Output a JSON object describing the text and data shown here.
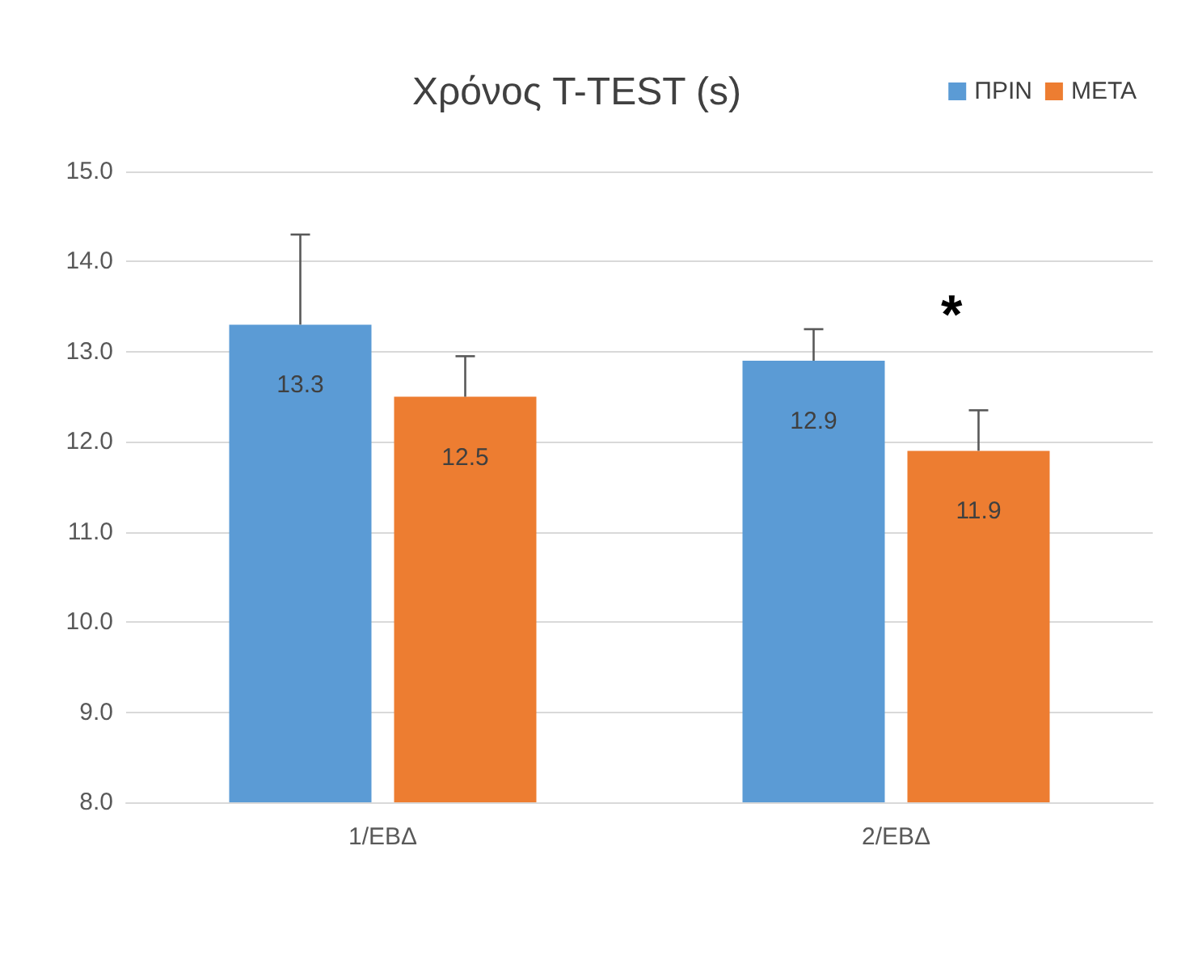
{
  "chart_data": {
    "type": "bar",
    "title": "Χρόνος T-TEST (s)",
    "categories": [
      "1/ΕΒΔ",
      "2/ΕΒΔ"
    ],
    "series": [
      {
        "name": "ΠΡΙΝ",
        "color": "#5b9bd5",
        "values": [
          13.3,
          12.9
        ],
        "errors": [
          [
            13.3,
            14.3
          ],
          [
            12.9,
            13.25
          ]
        ]
      },
      {
        "name": "ΜΕΤΑ",
        "color": "#ed7d31",
        "values": [
          12.5,
          11.9
        ],
        "errors": [
          [
            12.5,
            12.95
          ],
          [
            11.9,
            12.35
          ]
        ]
      }
    ],
    "ylim": [
      8,
      15
    ],
    "yticks": [
      {
        "value": 8,
        "label": "8.0"
      },
      {
        "value": 9,
        "label": "9.0"
      },
      {
        "value": 10,
        "label": "10.0"
      },
      {
        "value": 11,
        "label": "11.0"
      },
      {
        "value": 12,
        "label": "12.0"
      },
      {
        "value": 13,
        "label": "13.0"
      },
      {
        "value": 14,
        "label": "14.0"
      },
      {
        "value": 15,
        "label": "15.0"
      }
    ],
    "grid": "y",
    "legend": "top right",
    "data_labels": true,
    "annotations": [
      "*"
    ]
  }
}
